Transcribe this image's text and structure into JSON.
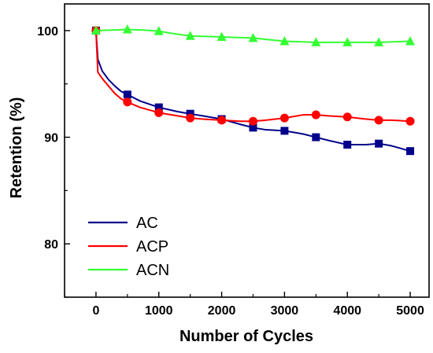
{
  "chart_data": {
    "type": "line",
    "xlabel": "Number of Cycles",
    "ylabel": "Retention (%)",
    "xlim": [
      -500,
      5300
    ],
    "ylim": [
      75,
      102.5
    ],
    "x_ticks": [
      0,
      1000,
      2000,
      3000,
      4000,
      5000
    ],
    "x_minor_ticks": [
      -500,
      500,
      1500,
      2500,
      3500,
      4500
    ],
    "y_ticks": [
      80,
      90,
      100
    ],
    "y_minor_ticks": [
      75,
      85,
      95
    ],
    "grid": false,
    "legend_position": "bottom-left",
    "series": [
      {
        "name": "AC",
        "color": "#00008b",
        "marker": "square",
        "curve_x": [
          0,
          30,
          100,
          200,
          300,
          400,
          500,
          700,
          1000,
          1300,
          1500,
          1700,
          2000,
          2300,
          2500,
          2700,
          3000,
          3300,
          3500,
          3700,
          4000,
          4300,
          4500,
          4700,
          5000
        ],
        "curve_y": [
          100,
          97.3,
          96.2,
          95.4,
          94.8,
          94.3,
          94.0,
          93.4,
          92.8,
          92.4,
          92.2,
          92.0,
          91.7,
          91.2,
          90.9,
          90.7,
          90.6,
          90.3,
          90.0,
          89.7,
          89.3,
          89.3,
          89.4,
          89.2,
          88.7
        ],
        "marker_x": [
          0,
          500,
          1000,
          1500,
          2000,
          2500,
          3000,
          3500,
          4000,
          4500,
          5000
        ],
        "marker_y": [
          100,
          94.0,
          92.8,
          92.2,
          91.7,
          90.9,
          90.6,
          90.0,
          89.3,
          89.4,
          88.7
        ]
      },
      {
        "name": "ACP",
        "color": "#ff0000",
        "marker": "circle",
        "curve_x": [
          0,
          30,
          100,
          200,
          300,
          400,
          500,
          700,
          1000,
          1300,
          1500,
          1700,
          2000,
          2300,
          2500,
          2700,
          3000,
          3300,
          3500,
          3700,
          4000,
          4300,
          4500,
          4700,
          5000
        ],
        "curve_y": [
          100,
          96.1,
          95.5,
          94.8,
          94.1,
          93.6,
          93.3,
          92.8,
          92.3,
          92.0,
          91.8,
          91.7,
          91.6,
          91.5,
          91.5,
          91.6,
          91.8,
          92.1,
          92.1,
          92.0,
          91.9,
          91.7,
          91.6,
          91.6,
          91.5
        ],
        "marker_x": [
          0,
          500,
          1000,
          1500,
          2000,
          2500,
          3000,
          3500,
          4000,
          4500,
          5000
        ],
        "marker_y": [
          100,
          93.3,
          92.3,
          91.8,
          91.6,
          91.5,
          91.8,
          92.1,
          91.9,
          91.6,
          91.5
        ]
      },
      {
        "name": "ACN",
        "color": "#33ff33",
        "marker": "triangle",
        "curve_x": [
          0,
          250,
          500,
          750,
          1000,
          1250,
          1500,
          2000,
          2500,
          3000,
          3500,
          4000,
          4500,
          5000
        ],
        "curve_y": [
          100,
          100.05,
          100.1,
          100.05,
          99.95,
          99.7,
          99.5,
          99.4,
          99.3,
          99.0,
          98.9,
          98.9,
          98.9,
          99.0
        ],
        "marker_x": [
          0,
          500,
          1000,
          1500,
          2000,
          2500,
          3000,
          3500,
          4000,
          4500,
          5000
        ],
        "marker_y": [
          100,
          100.1,
          99.95,
          99.5,
          99.4,
          99.3,
          99.0,
          98.9,
          98.9,
          98.9,
          99.0
        ]
      }
    ]
  }
}
